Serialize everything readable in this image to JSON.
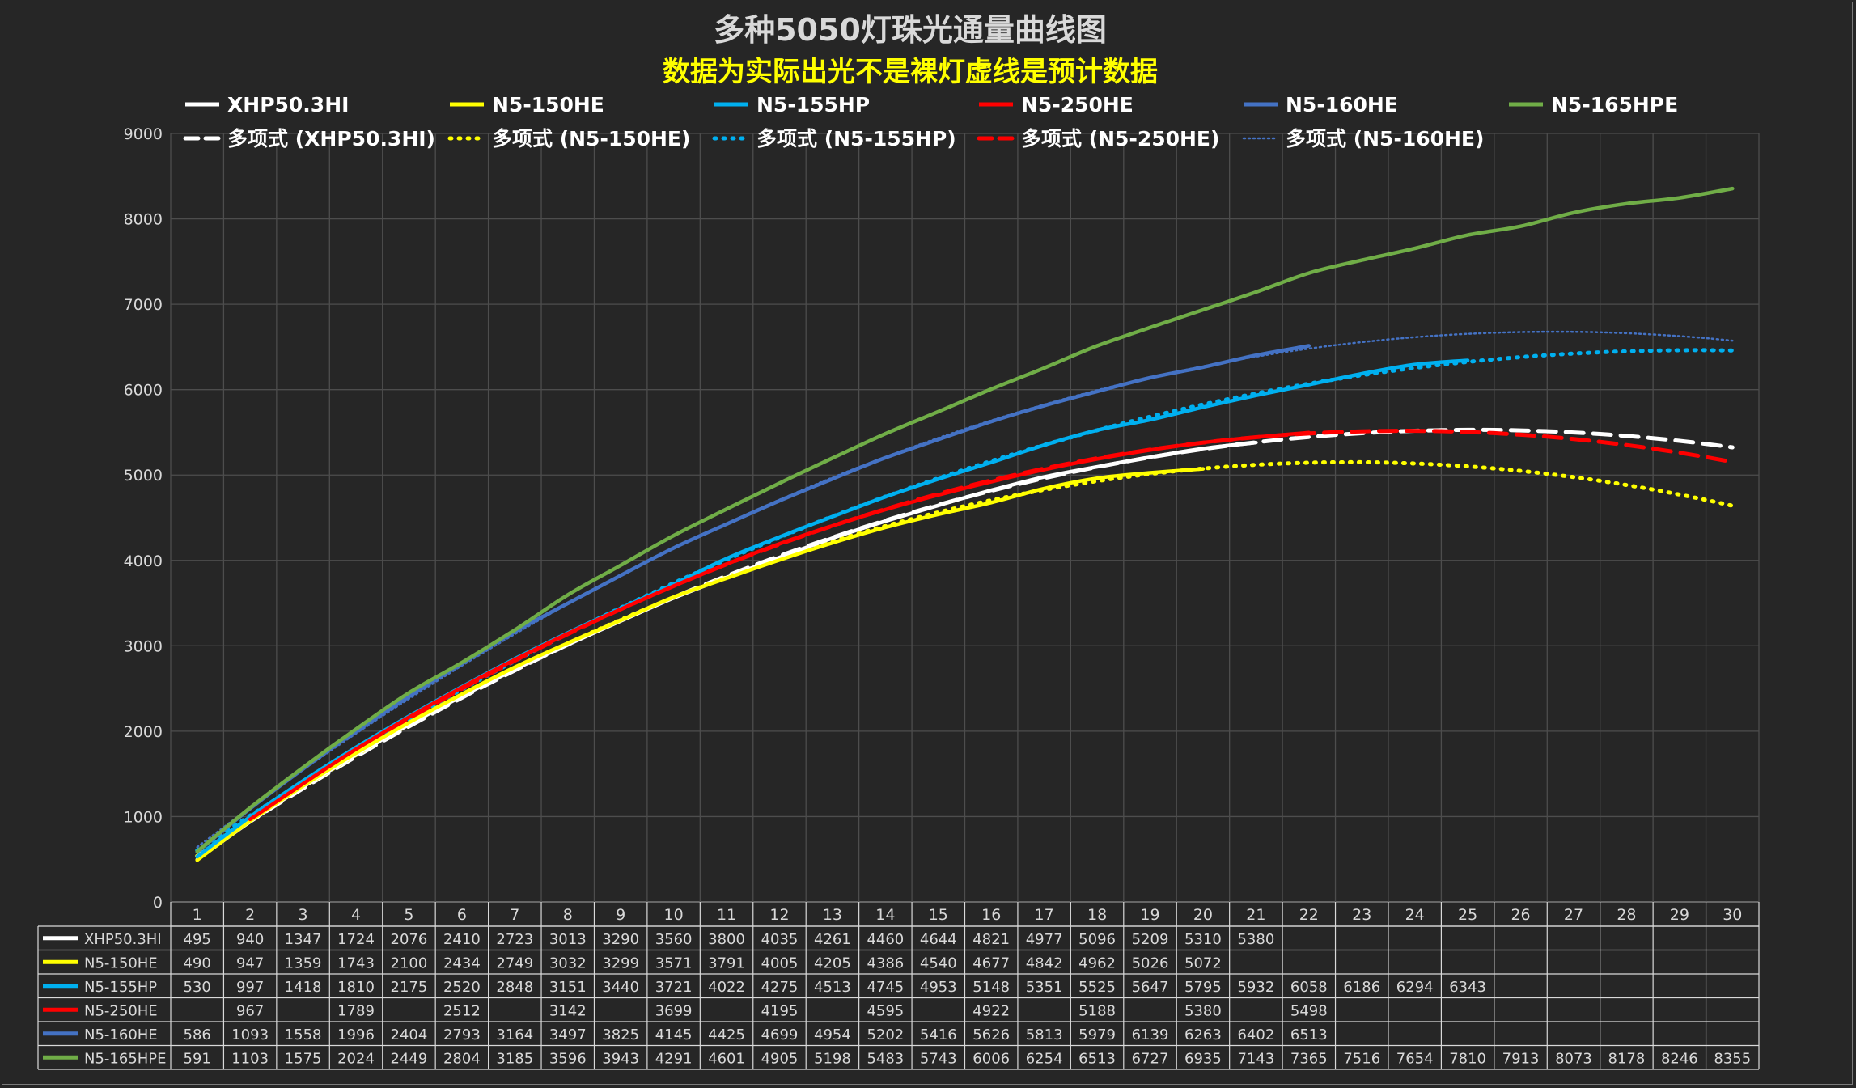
{
  "chart_data": {
    "type": "line",
    "title": "多种5050灯珠光通量曲线图",
    "subtitle": "数据为实际出光不是裸灯虚线是预计数据",
    "xlabel": "",
    "ylabel": "",
    "x": [
      1,
      2,
      3,
      4,
      5,
      6,
      7,
      8,
      9,
      10,
      11,
      12,
      13,
      14,
      15,
      16,
      17,
      18,
      19,
      20,
      21,
      22,
      23,
      24,
      25,
      26,
      27,
      28,
      29,
      30
    ],
    "xlim": [
      0.5,
      30.5
    ],
    "ylim": [
      0,
      9000
    ],
    "yticks": [
      0,
      1000,
      2000,
      3000,
      4000,
      5000,
      6000,
      7000,
      8000,
      9000
    ],
    "grid": true,
    "legend": "top",
    "series": [
      {
        "name": "XHP50.3HI",
        "color": "#ffffff",
        "values": [
          495,
          940,
          1347,
          1724,
          2076,
          2410,
          2723,
          3013,
          3290,
          3560,
          3800,
          4035,
          4261,
          4460,
          4644,
          4821,
          4977,
          5096,
          5209,
          5310,
          5380,
          null,
          null,
          null,
          null,
          null,
          null,
          null,
          null,
          null
        ]
      },
      {
        "name": "N5-150HE",
        "color": "#ffff00",
        "values": [
          490,
          947,
          1359,
          1743,
          2100,
          2434,
          2749,
          3032,
          3299,
          3571,
          3791,
          4005,
          4205,
          4386,
          4540,
          4677,
          4842,
          4962,
          5026,
          5072,
          null,
          null,
          null,
          null,
          null,
          null,
          null,
          null,
          null,
          null
        ]
      },
      {
        "name": "N5-155HP",
        "color": "#00b0f0",
        "values": [
          530,
          997,
          1418,
          1810,
          2175,
          2520,
          2848,
          3151,
          3440,
          3721,
          4022,
          4275,
          4513,
          4745,
          4953,
          5148,
          5351,
          5525,
          5647,
          5795,
          5932,
          6058,
          6186,
          6294,
          6343,
          null,
          null,
          null,
          null,
          null
        ]
      },
      {
        "name": "N5-250HE",
        "color": "#ff0000",
        "values": [
          null,
          967,
          null,
          1789,
          null,
          2512,
          null,
          3142,
          null,
          3699,
          null,
          4195,
          null,
          4595,
          null,
          4922,
          null,
          5188,
          null,
          5380,
          null,
          5498,
          null,
          null,
          null,
          null,
          null,
          null,
          null,
          null
        ]
      },
      {
        "name": "N5-160HE",
        "color": "#4472c4",
        "values": [
          586,
          1093,
          1558,
          1996,
          2404,
          2793,
          3164,
          3497,
          3825,
          4145,
          4425,
          4699,
          4954,
          5202,
          5416,
          5626,
          5813,
          5979,
          6139,
          6263,
          6402,
          6513,
          null,
          null,
          null,
          null,
          null,
          null,
          null,
          null
        ]
      },
      {
        "name": "N5-165HPE",
        "color": "#70ad47",
        "values": [
          591,
          1103,
          1575,
          2024,
          2449,
          2804,
          3185,
          3596,
          3943,
          4291,
          4601,
          4905,
          5198,
          5483,
          5743,
          6006,
          6254,
          6513,
          6727,
          6935,
          7143,
          7365,
          7516,
          7654,
          7810,
          7913,
          8073,
          8178,
          8246,
          8355
        ]
      }
    ],
    "trendlines": [
      {
        "name": "多项式 (XHP50.3HI)",
        "color": "#ffffff",
        "style": "dash"
      },
      {
        "name": "多项式 (N5-150HE)",
        "color": "#ffff00",
        "style": "dot"
      },
      {
        "name": "多项式 (N5-155HP)",
        "color": "#00b0f0",
        "style": "dot"
      },
      {
        "name": "多项式 (N5-250HE)",
        "color": "#ff0000",
        "style": "dash"
      },
      {
        "name": "多项式 (N5-160HE)",
        "color": "#4472c4",
        "style": "finedot"
      }
    ]
  }
}
